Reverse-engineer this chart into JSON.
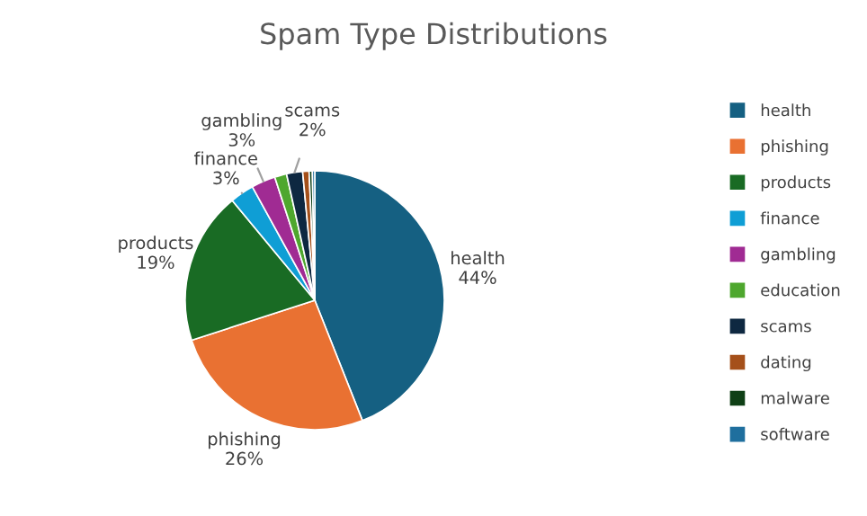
{
  "chart_data": {
    "type": "pie",
    "title": "Spam Type Distributions",
    "categories": [
      "health",
      "phishing",
      "products",
      "finance",
      "gambling",
      "education",
      "scams",
      "dating",
      "malware",
      "software"
    ],
    "values": [
      44,
      26,
      19,
      3,
      3,
      1.5,
      2,
      0.8,
      0.4,
      0.3
    ],
    "colors": [
      "#156082",
      "#e97132",
      "#196b24",
      "#0f9ed5",
      "#a02b93",
      "#4ea72e",
      "#0e2841",
      "#a5501a",
      "#0f4016",
      "#1f6f9e"
    ],
    "value_labels": [
      "44%",
      "26%",
      "19%",
      "3%",
      "3%",
      null,
      "2%",
      null,
      null,
      null
    ],
    "legend": "right"
  }
}
